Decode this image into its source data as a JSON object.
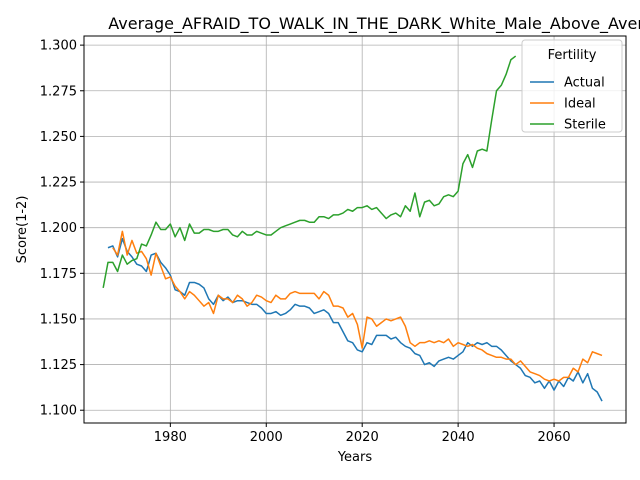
{
  "chart_data": {
    "type": "line",
    "title": "Average_AFRAID_TO_WALK_IN_THE_DARK_White_Male_Above_Average_",
    "xlabel": "Years",
    "ylabel": "Score(1-2)",
    "xlim": [
      1962,
      2075
    ],
    "ylim": [
      1.093,
      1.305
    ],
    "xticks": [
      1980,
      2000,
      2020,
      2040,
      2060
    ],
    "yticks": [
      1.1,
      1.125,
      1.15,
      1.175,
      1.2,
      1.225,
      1.25,
      1.275,
      1.3
    ],
    "ytick_labels": [
      "1.100",
      "1.125",
      "1.150",
      "1.175",
      "1.200",
      "1.225",
      "1.250",
      "1.275",
      "1.300"
    ],
    "grid": true,
    "legend": {
      "title": "Fertility",
      "placement": "top-right"
    },
    "series": [
      {
        "name": "Actual",
        "color": "#1f77b4",
        "x": [
          1967,
          1968,
          1969,
          1970,
          1971,
          1972,
          1973,
          1974,
          1975,
          1976,
          1977,
          1978,
          1979,
          1980,
          1981,
          1982,
          1983,
          1984,
          1985,
          1986,
          1987,
          1988,
          1989,
          1990,
          1991,
          1992,
          1993,
          1994,
          1995,
          1996,
          1997,
          1998,
          1999,
          2000,
          2001,
          2002,
          2003,
          2004,
          2005,
          2006,
          2007,
          2008,
          2009,
          2010,
          2011,
          2012,
          2013,
          2014,
          2015,
          2016,
          2017,
          2018,
          2019,
          2020,
          2021,
          2022,
          2023,
          2024,
          2025,
          2026,
          2027,
          2028,
          2029,
          2030,
          2031,
          2032,
          2033,
          2034,
          2035,
          2036,
          2037,
          2038,
          2039,
          2040,
          2041,
          2042,
          2043,
          2044,
          2045,
          2046,
          2047,
          2048,
          2049,
          2050,
          2051,
          2052,
          2053,
          2054,
          2055,
          2056,
          2057,
          2058,
          2059,
          2060,
          2061,
          2062,
          2063,
          2064,
          2065,
          2066,
          2067,
          2068,
          2069,
          2070
        ],
        "y": [
          1.189,
          1.19,
          1.184,
          1.194,
          1.187,
          1.184,
          1.18,
          1.179,
          1.176,
          1.185,
          1.186,
          1.181,
          1.178,
          1.174,
          1.166,
          1.165,
          1.163,
          1.17,
          1.17,
          1.169,
          1.167,
          1.161,
          1.158,
          1.163,
          1.16,
          1.162,
          1.159,
          1.16,
          1.16,
          1.159,
          1.158,
          1.158,
          1.156,
          1.153,
          1.153,
          1.154,
          1.152,
          1.153,
          1.155,
          1.158,
          1.157,
          1.157,
          1.156,
          1.153,
          1.154,
          1.155,
          1.153,
          1.148,
          1.148,
          1.143,
          1.138,
          1.137,
          1.133,
          1.132,
          1.137,
          1.136,
          1.141,
          1.141,
          1.141,
          1.139,
          1.14,
          1.137,
          1.135,
          1.134,
          1.131,
          1.13,
          1.125,
          1.126,
          1.124,
          1.127,
          1.128,
          1.129,
          1.128,
          1.13,
          1.132,
          1.137,
          1.135,
          1.137,
          1.136,
          1.137,
          1.135,
          1.135,
          1.133,
          1.13,
          1.127,
          1.125,
          1.123,
          1.119,
          1.118,
          1.115,
          1.116,
          1.112,
          1.116,
          1.111,
          1.116,
          1.113,
          1.118,
          1.116,
          1.121,
          1.115,
          1.12,
          1.112,
          1.11,
          1.105
        ]
      },
      {
        "name": "Ideal",
        "color": "#ff7f0e",
        "x": [
          1967,
          1968,
          1969,
          1970,
          1971,
          1972,
          1973,
          1974,
          1975,
          1976,
          1977,
          1978,
          1979,
          1980,
          1981,
          1982,
          1983,
          1984,
          1985,
          1986,
          1987,
          1988,
          1989,
          1990,
          1991,
          1992,
          1993,
          1994,
          1995,
          1996,
          1997,
          1998,
          1999,
          2000,
          2001,
          2002,
          2003,
          2004,
          2005,
          2006,
          2007,
          2008,
          2009,
          2010,
          2011,
          2012,
          2013,
          2014,
          2015,
          2016,
          2017,
          2018,
          2019,
          2020,
          2021,
          2022,
          2023,
          2024,
          2025,
          2026,
          2027,
          2028,
          2029,
          2030,
          2031,
          2032,
          2033,
          2034,
          2035,
          2036,
          2037,
          2038,
          2039,
          2040,
          2041,
          2042,
          2043,
          2044,
          2045,
          2046,
          2047,
          2048,
          2049,
          2050,
          2051,
          2052,
          2053,
          2054,
          2055,
          2056,
          2057,
          2058,
          2059,
          2060,
          2061,
          2062,
          2063,
          2064,
          2065,
          2066,
          2067,
          2068,
          2069,
          2070
        ],
        "y": [
          null,
          1.189,
          1.185,
          1.198,
          1.185,
          1.193,
          1.186,
          1.187,
          1.183,
          1.174,
          1.186,
          1.179,
          1.172,
          1.173,
          1.168,
          1.165,
          1.161,
          1.165,
          1.163,
          1.16,
          1.157,
          1.159,
          1.153,
          1.163,
          1.161,
          1.161,
          1.159,
          1.163,
          1.161,
          1.157,
          1.159,
          1.163,
          1.162,
          1.16,
          1.159,
          1.163,
          1.161,
          1.161,
          1.164,
          1.165,
          1.164,
          1.164,
          1.164,
          1.164,
          1.161,
          1.165,
          1.163,
          1.157,
          1.157,
          1.156,
          1.151,
          1.153,
          1.147,
          1.134,
          1.151,
          1.15,
          1.146,
          1.148,
          1.15,
          1.149,
          1.15,
          1.151,
          1.146,
          1.137,
          1.135,
          1.137,
          1.137,
          1.138,
          1.137,
          1.138,
          1.137,
          1.139,
          1.135,
          1.137,
          1.136,
          1.135,
          1.136,
          1.134,
          1.133,
          1.131,
          1.13,
          1.129,
          1.129,
          1.128,
          1.128,
          1.125,
          1.127,
          1.124,
          1.121,
          1.12,
          1.119,
          1.117,
          1.116,
          1.117,
          1.116,
          1.118,
          1.118,
          1.123,
          1.121,
          1.128,
          1.126,
          1.132,
          1.131,
          1.13
        ]
      },
      {
        "name": "Sterile",
        "color": "#2ca02c",
        "x": [
          1966,
          1967,
          1968,
          1969,
          1970,
          1971,
          1972,
          1973,
          1974,
          1975,
          1976,
          1977,
          1978,
          1979,
          1980,
          1981,
          1982,
          1983,
          1984,
          1985,
          1986,
          1987,
          1988,
          1989,
          1990,
          1991,
          1992,
          1993,
          1994,
          1995,
          1996,
          1997,
          1998,
          1999,
          2000,
          2001,
          2002,
          2003,
          2004,
          2005,
          2006,
          2007,
          2008,
          2009,
          2010,
          2011,
          2012,
          2013,
          2014,
          2015,
          2016,
          2017,
          2018,
          2019,
          2020,
          2021,
          2022,
          2023,
          2024,
          2025,
          2026,
          2027,
          2028,
          2029,
          2030,
          2031,
          2032,
          2033,
          2034,
          2035,
          2036,
          2037,
          2038,
          2039,
          2040,
          2041,
          2042,
          2043,
          2044,
          2045,
          2046,
          2047,
          2048,
          2049,
          2050,
          2051,
          2052
        ],
        "y": [
          1.167,
          1.181,
          1.181,
          1.176,
          1.185,
          1.18,
          1.182,
          1.183,
          1.191,
          1.19,
          1.196,
          1.203,
          1.199,
          1.199,
          1.202,
          1.195,
          1.2,
          1.193,
          1.202,
          1.197,
          1.197,
          1.199,
          1.199,
          1.198,
          1.198,
          1.199,
          1.199,
          1.196,
          1.195,
          1.198,
          1.196,
          1.196,
          1.198,
          1.197,
          1.196,
          1.196,
          1.198,
          1.2,
          1.201,
          1.202,
          1.203,
          1.204,
          1.204,
          1.203,
          1.203,
          1.206,
          1.206,
          1.205,
          1.207,
          1.207,
          1.208,
          1.21,
          1.209,
          1.211,
          1.211,
          1.212,
          1.21,
          1.211,
          1.208,
          1.205,
          1.207,
          1.208,
          1.206,
          1.212,
          1.209,
          1.219,
          1.206,
          1.214,
          1.215,
          1.212,
          1.213,
          1.217,
          1.218,
          1.217,
          1.22,
          1.235,
          1.24,
          1.233,
          1.242,
          1.243,
          1.242,
          1.259,
          1.275,
          1.278,
          1.284,
          1.292,
          1.294
        ]
      }
    ]
  }
}
